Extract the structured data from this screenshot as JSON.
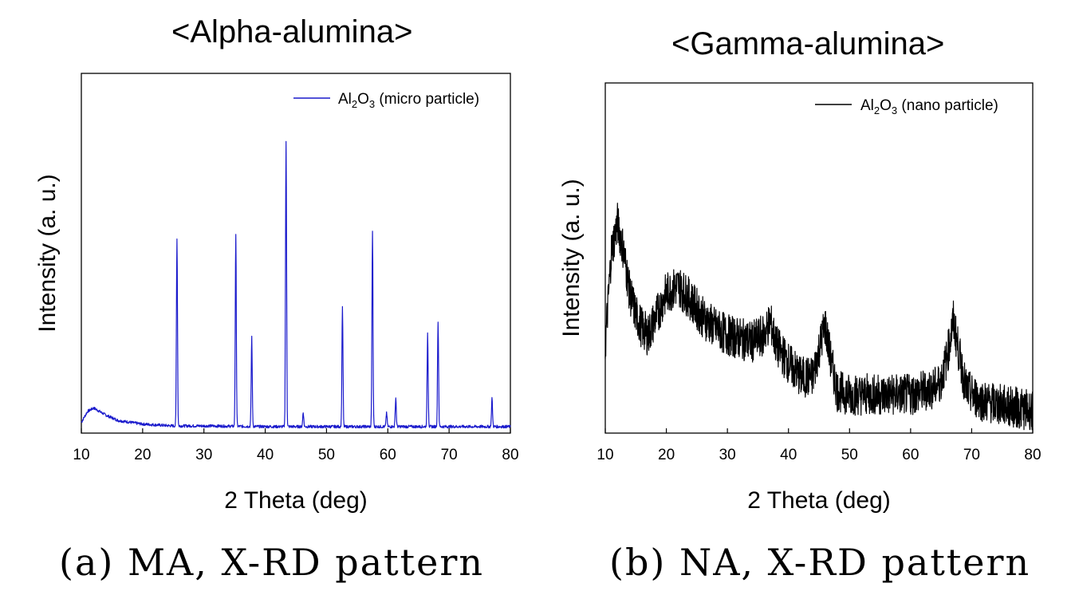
{
  "chart_data": [
    {
      "type": "line",
      "title": "<Alpha-alumina>",
      "xlabel": "2 Theta (deg)",
      "ylabel": "Intensity (a. u.)",
      "caption": "(a) MA, X-RD pattern",
      "xlim": [
        10,
        80
      ],
      "ylim": [
        0,
        100
      ],
      "xticks": [
        10,
        20,
        30,
        40,
        50,
        60,
        70,
        80
      ],
      "yticks_shown": false,
      "legend": {
        "position": "top-right",
        "prefix": "Al",
        "sub1": "2",
        "mid": "O",
        "sub2": "3",
        "suffix": " (micro particle)"
      },
      "line_color": "#1a1acc",
      "series": [
        {
          "name": "Al2O3 (micro particle)",
          "baseline": [
            [
              10,
              3
            ],
            [
              11,
              6
            ],
            [
              12,
              7
            ],
            [
              13,
              6
            ],
            [
              14,
              5
            ],
            [
              16,
              3.5
            ],
            [
              20,
              2.5
            ],
            [
              25,
              2
            ],
            [
              30,
              2
            ],
            [
              40,
              1.8
            ],
            [
              50,
              1.8
            ],
            [
              60,
              1.8
            ],
            [
              70,
              1.8
            ],
            [
              80,
              1.8
            ]
          ],
          "peaks": [
            {
              "x": 25.6,
              "y": 52
            },
            {
              "x": 35.2,
              "y": 53
            },
            {
              "x": 37.8,
              "y": 25
            },
            {
              "x": 43.4,
              "y": 79
            },
            {
              "x": 46.2,
              "y": 4
            },
            {
              "x": 52.6,
              "y": 33
            },
            {
              "x": 57.5,
              "y": 54
            },
            {
              "x": 59.8,
              "y": 4
            },
            {
              "x": 61.3,
              "y": 8
            },
            {
              "x": 66.5,
              "y": 26
            },
            {
              "x": 68.2,
              "y": 29
            },
            {
              "x": 77.0,
              "y": 8
            }
          ]
        }
      ]
    },
    {
      "type": "line",
      "title": "<Gamma-alumina>",
      "xlabel": "2 Theta (deg)",
      "ylabel": "Intensity (a. u.)",
      "caption": "(b) NA, X-RD pattern",
      "xlim": [
        10,
        80
      ],
      "ylim": [
        0,
        100
      ],
      "xticks": [
        10,
        20,
        30,
        40,
        50,
        60,
        70,
        80
      ],
      "yticks_shown": false,
      "legend": {
        "position": "top-right",
        "prefix": "Al",
        "sub1": "2",
        "mid": "O",
        "sub2": "3",
        "suffix": " (nano particle)"
      },
      "line_color": "#000000",
      "series": [
        {
          "name": "Al2O3 (nano particle)",
          "profile": [
            [
              10,
              25
            ],
            [
              11,
              52
            ],
            [
              12,
              60
            ],
            [
              13,
              52
            ],
            [
              14,
              40
            ],
            [
              15,
              34
            ],
            [
              16,
              30
            ],
            [
              17,
              28
            ],
            [
              18,
              32
            ],
            [
              20,
              40
            ],
            [
              22,
              42
            ],
            [
              24,
              38
            ],
            [
              26,
              33
            ],
            [
              28,
              30
            ],
            [
              30,
              28
            ],
            [
              32,
              27
            ],
            [
              34,
              26
            ],
            [
              36,
              28
            ],
            [
              37,
              32
            ],
            [
              38,
              25
            ],
            [
              40,
              20
            ],
            [
              42,
              16
            ],
            [
              44,
              16
            ],
            [
              45,
              24
            ],
            [
              46,
              31
            ],
            [
              47,
              20
            ],
            [
              48,
              12
            ],
            [
              50,
              11
            ],
            [
              52,
              11
            ],
            [
              55,
              11
            ],
            [
              58,
              11
            ],
            [
              60,
              11
            ],
            [
              62,
              12
            ],
            [
              64,
              13
            ],
            [
              65,
              15
            ],
            [
              66,
              22
            ],
            [
              67,
              32
            ],
            [
              68,
              22
            ],
            [
              69,
              13
            ],
            [
              70,
              11
            ],
            [
              72,
              9
            ],
            [
              75,
              8
            ],
            [
              78,
              7
            ],
            [
              80,
              6
            ]
          ],
          "noise_amplitude": 6
        }
      ]
    }
  ]
}
